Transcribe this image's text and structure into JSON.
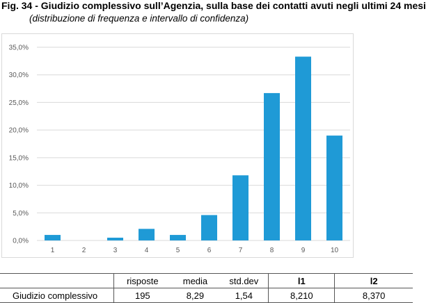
{
  "figure": {
    "title": "Fig. 34 - Giudizio complessivo sull’Agenzia, sulla base dei contatti avuti negli ultimi 24 mesi",
    "subtitle": "(distribuzione di frequenza e intervallo di confidenza)"
  },
  "chart_data": {
    "type": "bar",
    "title": "",
    "xlabel": "",
    "ylabel": "",
    "categories": [
      "1",
      "2",
      "3",
      "4",
      "5",
      "6",
      "7",
      "8",
      "9",
      "10"
    ],
    "values": [
      1.0,
      0.0,
      0.5,
      2.1,
      1.0,
      4.6,
      11.8,
      26.7,
      33.3,
      19.0
    ],
    "ylim": [
      0,
      35
    ],
    "yticks": [
      0,
      5,
      10,
      15,
      20,
      25,
      30,
      35
    ],
    "ytick_labels": [
      "0,0%",
      "5,0%",
      "10,0%",
      "15,0%",
      "20,0%",
      "25,0%",
      "30,0%",
      "35,0%"
    ],
    "grid": true,
    "bar_color": "#1f9ad6",
    "grid_color": "#d9d9d9",
    "tick_label_color": "#595959"
  },
  "stats_table": {
    "headers": [
      "",
      "risposte",
      "media",
      "std.dev",
      "l1",
      "l2"
    ],
    "row": [
      "Giudizio complessivo",
      "195",
      "8,29",
      "1,54",
      "8,210",
      "8,370"
    ]
  }
}
